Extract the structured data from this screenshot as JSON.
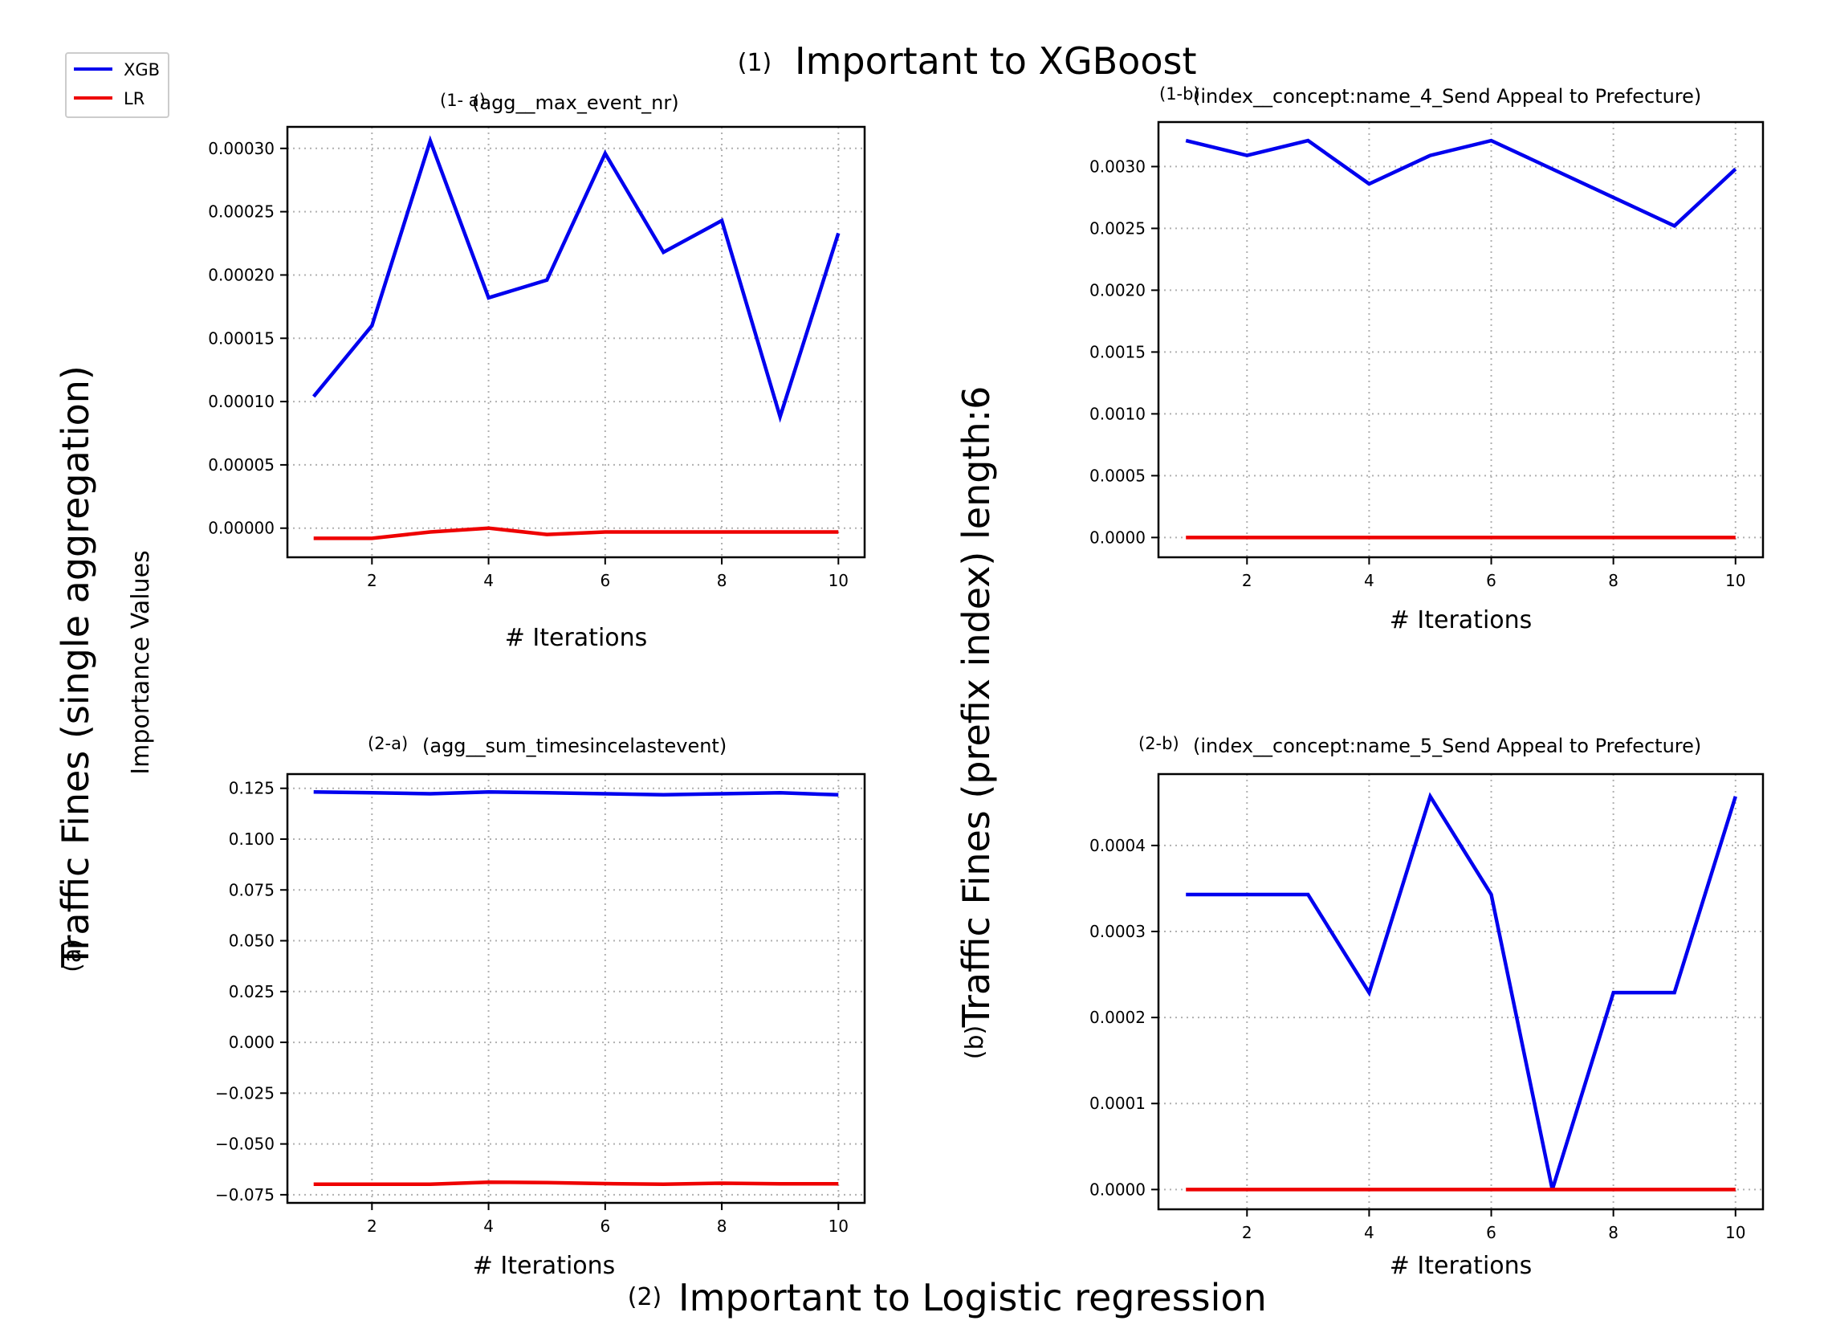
{
  "figure": {
    "top_num": "(1)",
    "top_title": "Important to XGBoost",
    "bottom_num": "(2)",
    "bottom_title": "Important to Logistic regression",
    "left_num": "(a)",
    "left_title": "Traffic Fines (single aggregation)",
    "ylabel": "Importance Values",
    "middle_num": "(b)",
    "middle_title": "Traffic Fines (prefix index) length:6"
  },
  "legend": {
    "items": [
      {
        "label": "XGB",
        "color": "#0000ee"
      },
      {
        "label": "LR",
        "color": "#ee0000"
      }
    ]
  },
  "chart_data": [
    {
      "type": "line",
      "panel": "1-a",
      "tag": "(1- a)",
      "title": "(agg__max_event_nr)",
      "xlabel": "# Iterations",
      "xlim": [
        0.55,
        10.45
      ],
      "ylim": [
        -2.3e-05,
        0.000317
      ],
      "xticks": [
        2,
        4,
        6,
        8,
        10
      ],
      "xtick_labels": [
        "2",
        "4",
        "6",
        "8",
        "10"
      ],
      "yticks": [
        0,
        5e-05,
        0.0001,
        0.00015,
        0.0002,
        0.00025,
        0.0003
      ],
      "ytick_labels": [
        "0.00000",
        "0.00005",
        "0.00010",
        "0.00015",
        "0.00020",
        "0.00025",
        "0.00030"
      ],
      "x": [
        1,
        2,
        3,
        4,
        5,
        6,
        7,
        8,
        9,
        10
      ],
      "series": [
        {
          "name": "XGB",
          "color": "#0000ee",
          "values": [
            0.000104,
            0.00016,
            0.000306,
            0.000182,
            0.000196,
            0.000296,
            0.000218,
            0.000243,
            8.8e-05,
            0.000233
          ]
        },
        {
          "name": "LR",
          "color": "#ee0000",
          "values": [
            -8e-06,
            -8e-06,
            -3e-06,
            0.0,
            -5e-06,
            -3e-06,
            -3e-06,
            -3e-06,
            -3e-06,
            -3e-06
          ]
        }
      ]
    },
    {
      "type": "line",
      "panel": "1-b",
      "tag": "(1-b)",
      "title": "(index__concept:name_4_Send Appeal to Prefecture)",
      "xlabel": "# Iterations",
      "xlim": [
        0.55,
        10.45
      ],
      "ylim": [
        -0.00016,
        0.00336
      ],
      "xticks": [
        2,
        4,
        6,
        8,
        10
      ],
      "xtick_labels": [
        "2",
        "4",
        "6",
        "8",
        "10"
      ],
      "yticks": [
        0,
        0.0005,
        0.001,
        0.0015,
        0.002,
        0.0025,
        0.003
      ],
      "ytick_labels": [
        "0.0000",
        "0.0005",
        "0.0010",
        "0.0015",
        "0.0020",
        "0.0025",
        "0.0030"
      ],
      "x": [
        1,
        2,
        3,
        4,
        5,
        6,
        7,
        8,
        9,
        10
      ],
      "series": [
        {
          "name": "XGB",
          "color": "#0000ee",
          "values": [
            0.00321,
            0.00309,
            0.00321,
            0.00286,
            0.00309,
            0.00321,
            0.00298,
            0.00275,
            0.00252,
            0.00298
          ]
        },
        {
          "name": "LR",
          "color": "#ee0000",
          "values": [
            0,
            0,
            0,
            0,
            0,
            0,
            0,
            0,
            0,
            0
          ]
        }
      ]
    },
    {
      "type": "line",
      "panel": "2-a",
      "tag": "(2-a)",
      "title": "(agg__sum_timesincelastevent)",
      "xlabel": "# Iterations",
      "xlim": [
        0.55,
        10.45
      ],
      "ylim": [
        -0.079,
        0.132
      ],
      "xticks": [
        2,
        4,
        6,
        8,
        10
      ],
      "xtick_labels": [
        "2",
        "4",
        "6",
        "8",
        "10"
      ],
      "yticks": [
        -0.075,
        -0.05,
        -0.025,
        0,
        0.025,
        0.05,
        0.075,
        0.1,
        0.125
      ],
      "ytick_labels": [
        "−0.075",
        "−0.050",
        "−0.025",
        "0.000",
        "0.025",
        "0.050",
        "0.075",
        "0.100",
        "0.125"
      ],
      "x": [
        1,
        2,
        3,
        4,
        5,
        6,
        7,
        8,
        9,
        10
      ],
      "series": [
        {
          "name": "XGB",
          "color": "#0000ee",
          "values": [
            0.1232,
            0.1228,
            0.1223,
            0.1232,
            0.1228,
            0.1223,
            0.1218,
            0.1223,
            0.1228,
            0.1218
          ]
        },
        {
          "name": "LR",
          "color": "#ee0000",
          "values": [
            -0.0698,
            -0.0698,
            -0.0698,
            -0.0688,
            -0.069,
            -0.0695,
            -0.0698,
            -0.0693,
            -0.0696,
            -0.0696
          ]
        }
      ]
    },
    {
      "type": "line",
      "panel": "2-b",
      "tag": "(2-b)",
      "title": "(index__concept:name_5_Send Appeal to Prefecture)",
      "xlabel": "# Iterations",
      "xlim": [
        0.55,
        10.45
      ],
      "ylim": [
        -2.3e-05,
        0.000483
      ],
      "xticks": [
        2,
        4,
        6,
        8,
        10
      ],
      "xtick_labels": [
        "2",
        "4",
        "6",
        "8",
        "10"
      ],
      "yticks": [
        0,
        0.0001,
        0.0002,
        0.0003,
        0.0004
      ],
      "ytick_labels": [
        "0.0000",
        "0.0001",
        "0.0002",
        "0.0003",
        "0.0004"
      ],
      "x": [
        1,
        2,
        3,
        4,
        5,
        6,
        7,
        8,
        9,
        10
      ],
      "series": [
        {
          "name": "XGB",
          "color": "#0000ee",
          "values": [
            0.000343,
            0.000343,
            0.000343,
            0.000229,
            0.000457,
            0.000343,
            0.0,
            0.000229,
            0.000229,
            0.000457
          ]
        },
        {
          "name": "LR",
          "color": "#ee0000",
          "values": [
            0,
            0,
            0,
            0,
            0,
            0,
            0,
            0,
            0,
            0
          ]
        }
      ]
    }
  ]
}
